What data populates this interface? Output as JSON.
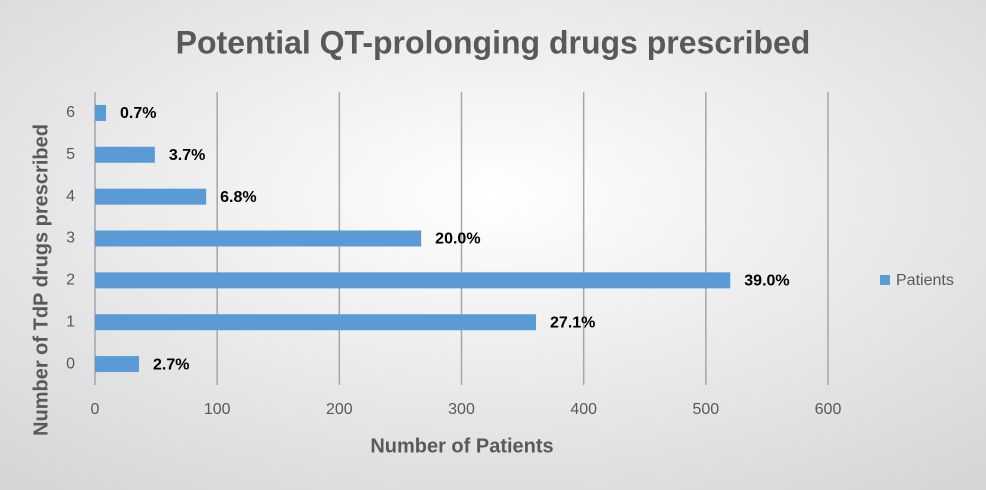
{
  "chart_data": {
    "type": "bar",
    "orientation": "horizontal",
    "title": "Potential QT-prolonging drugs prescribed",
    "x_label": "Number of Patients",
    "y_label": "Number of TdP drugs prescribed",
    "categories": [
      "0",
      "1",
      "2",
      "3",
      "4",
      "5",
      "6"
    ],
    "series": [
      {
        "name": "Patients",
        "color": "#5b9bd5",
        "values": [
          36,
          361,
          520,
          267,
          91,
          49,
          9
        ],
        "value_labels": [
          "2.7%",
          "27.1%",
          "39.0%",
          "20.0%",
          "6.8%",
          "3.7%",
          "0.7%"
        ]
      }
    ],
    "xlim": [
      0,
      600
    ],
    "xticks": [
      0,
      100,
      200,
      300,
      400,
      500,
      600
    ],
    "grid": true,
    "legend": "right"
  }
}
